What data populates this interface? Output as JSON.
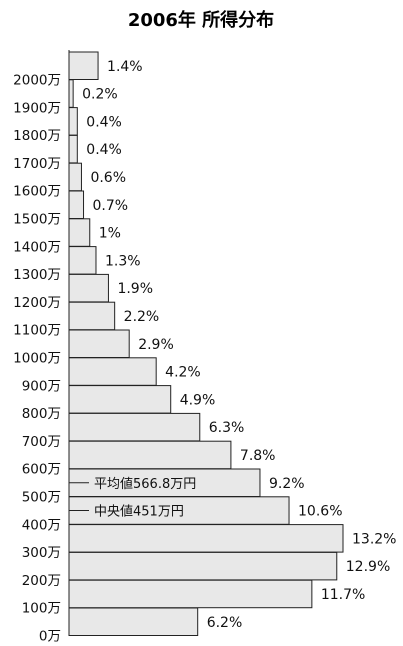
{
  "chart_data": {
    "type": "bar",
    "orientation": "horizontal",
    "title": "2006年 所得分布",
    "xlabel": "",
    "ylabel": "",
    "grid": false,
    "categories": [
      "2000万",
      "1900万",
      "1800万",
      "1700万",
      "1600万",
      "1500万",
      "1400万",
      "1300万",
      "1200万",
      "1100万",
      "1000万",
      "900万",
      "800万",
      "700万",
      "600万",
      "500万",
      "400万",
      "300万",
      "200万",
      "100万",
      "0万"
    ],
    "values": [
      1.4,
      0.2,
      0.4,
      0.4,
      0.6,
      0.7,
      1,
      1.3,
      1.9,
      2.2,
      2.9,
      4.2,
      4.9,
      6.3,
      7.8,
      9.2,
      10.6,
      13.2,
      12.9,
      11.7,
      6.2
    ],
    "value_labels": [
      "1.4%",
      "0.2%",
      "0.4%",
      "0.4%",
      "0.6%",
      "0.7%",
      "1%",
      "1.3%",
      "1.9%",
      "2.2%",
      "2.9%",
      "4.2%",
      "4.9%",
      "6.3%",
      "7.8%",
      "9.2%",
      "10.6%",
      "13.2%",
      "12.9%",
      "11.7%",
      "6.2%"
    ],
    "bar_color": "#e8e8e8",
    "bar_stroke": "#222222",
    "annotations": [
      {
        "text": "平均値566.8万円",
        "category": "500万"
      },
      {
        "text": "中央値451万円",
        "category": "400万"
      }
    ]
  }
}
